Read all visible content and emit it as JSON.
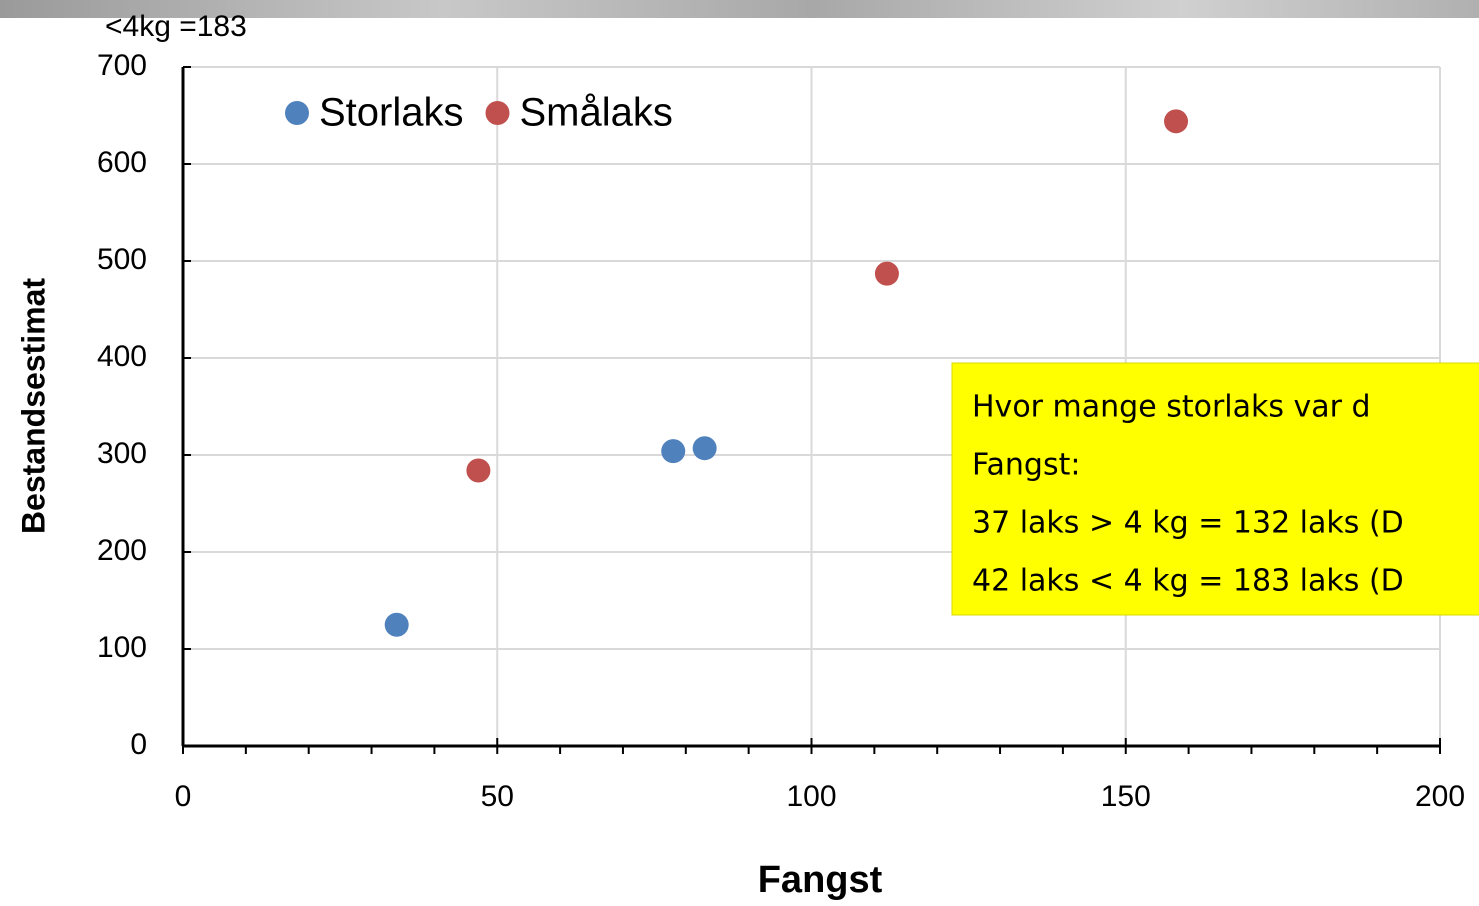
{
  "chart_data": {
    "type": "scatter",
    "xlabel": "Fangst",
    "ylabel": "Bestandsestimat",
    "top_note": "<4kg =183",
    "annotation": [
      "Hvor mange storlaks var d",
      "Fangst:",
      "37 laks > 4 kg = 132 laks (D",
      "42 laks < 4 kg = 183 laks (D"
    ],
    "xlim": [
      0,
      200
    ],
    "ylim": [
      0,
      700
    ],
    "xticks": [
      0,
      50,
      100,
      150,
      200
    ],
    "xminorticks": [
      10,
      20,
      30,
      40,
      60,
      70,
      80,
      90,
      110,
      120,
      130,
      140,
      160,
      170,
      180,
      190
    ],
    "yticks": [
      0,
      100,
      200,
      300,
      400,
      500,
      600,
      700
    ],
    "grid": true,
    "legend": "top-left",
    "series": [
      {
        "name": "Storlaks",
        "color": "#4f81bd",
        "x": [
          34,
          78,
          83
        ],
        "values": [
          125,
          304,
          307
        ]
      },
      {
        "name": "Smålaks",
        "color": "#c0504d",
        "x": [
          47,
          112,
          158
        ],
        "values": [
          284,
          487,
          644
        ]
      }
    ]
  }
}
